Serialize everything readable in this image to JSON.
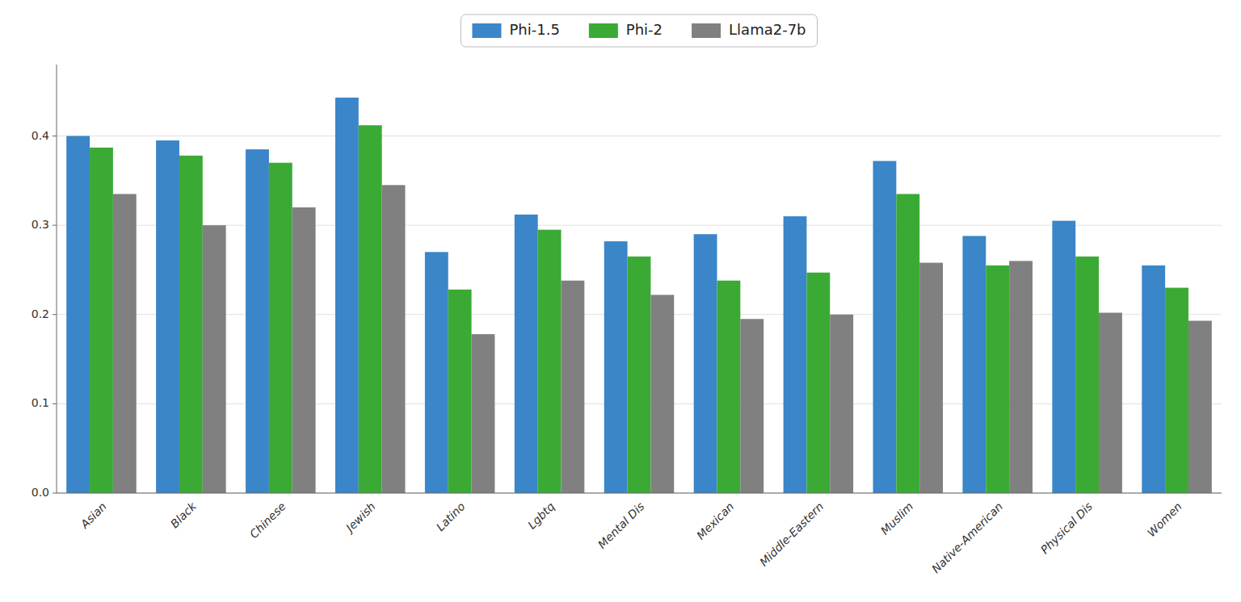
{
  "chart_data": {
    "type": "bar",
    "categories": [
      "Asian",
      "Black",
      "Chinese",
      "Jewish",
      "Latino",
      "Lgbtq",
      "Mental Dis",
      "Mexican",
      "Middle-Eastern",
      "Muslim",
      "Native-American",
      "Physical Dis",
      "Women"
    ],
    "series": [
      {
        "name": "Phi-1.5",
        "color": "#3a86c8",
        "values": [
          0.4,
          0.395,
          0.385,
          0.443,
          0.27,
          0.312,
          0.282,
          0.29,
          0.31,
          0.372,
          0.288,
          0.305,
          0.255
        ]
      },
      {
        "name": "Phi-2",
        "color": "#3aaa35",
        "values": [
          0.387,
          0.378,
          0.37,
          0.412,
          0.228,
          0.295,
          0.265,
          0.238,
          0.247,
          0.335,
          0.255,
          0.265,
          0.23
        ]
      },
      {
        "name": "Llama2-7b",
        "color": "#808080",
        "values": [
          0.335,
          0.3,
          0.32,
          0.345,
          0.178,
          0.238,
          0.222,
          0.195,
          0.2,
          0.258,
          0.26,
          0.202,
          0.193
        ]
      }
    ],
    "ylim": [
      0,
      0.48
    ],
    "yticks": [
      {
        "value": 0,
        "label": "0.0"
      },
      0.1,
      0.2,
      0.3,
      0.4
    ],
    "grid": true,
    "legend": "top"
  }
}
